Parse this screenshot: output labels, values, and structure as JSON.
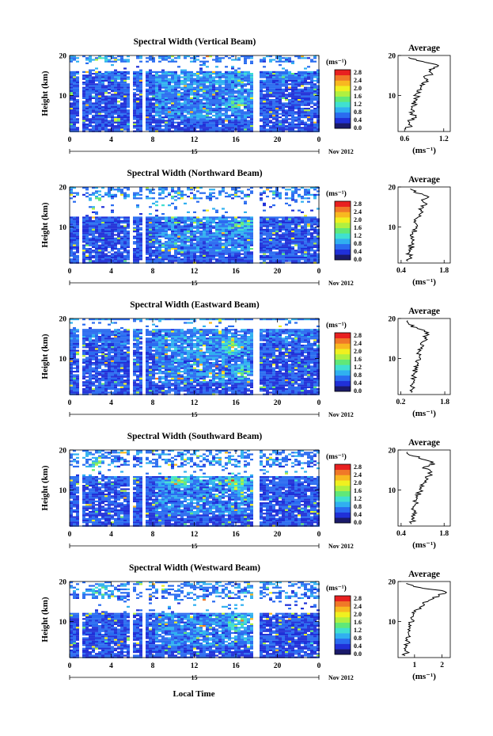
{
  "figure": {
    "date_label": "Nov 2012",
    "day_label": "15",
    "xlabel": "Local Time",
    "avg_title": "Average",
    "unit_label": "(ms⁻¹)"
  },
  "colorbar": {
    "ticks": [
      "2.8",
      "2.4",
      "2.0",
      "1.6",
      "1.2",
      "0.8",
      "0.4",
      "0.0"
    ],
    "colors": [
      "#1a1a6a",
      "#2030d8",
      "#2a6cf0",
      "#30b0f0",
      "#40e0d0",
      "#60e878",
      "#b0f040",
      "#f0f020",
      "#f8b820",
      "#f07828",
      "#e82020"
    ]
  },
  "chart_data": [
    {
      "type": "heatmap",
      "title": "Spectral Width (Vertical Beam)",
      "xlabel": "Local Time",
      "ylabel": "Height (km)",
      "x_ticks": [
        "0",
        "4",
        "8",
        "12",
        "16",
        "20",
        "0"
      ],
      "y_ticks": [
        "20",
        "10"
      ],
      "xlim": [
        0,
        24
      ],
      "ylim": [
        1,
        20
      ],
      "gap_band_km": [
        16.5,
        18.5
      ],
      "gaps_hours": [
        5.8,
        7.0,
        17.8
      ],
      "hot_patches": [
        {
          "x": 2.5,
          "y": 18.5
        },
        {
          "x": 16,
          "y": 8
        }
      ],
      "average": {
        "title": "Average",
        "xlabel": "(ms⁻¹)",
        "x_ticks": [
          "0.6",
          "1.2"
        ],
        "xlim": [
          0.5,
          1.3
        ],
        "y_ticks": [
          "20",
          "10"
        ],
        "ylim": [
          1,
          20
        ],
        "profile": [
          {
            "h": 1.5,
            "v": 0.62
          },
          {
            "h": 2.5,
            "v": 0.7
          },
          {
            "h": 3.5,
            "v": 0.66
          },
          {
            "h": 4.5,
            "v": 0.78
          },
          {
            "h": 5.5,
            "v": 0.72
          },
          {
            "h": 6.5,
            "v": 0.7
          },
          {
            "h": 7.5,
            "v": 0.76
          },
          {
            "h": 8.5,
            "v": 0.74
          },
          {
            "h": 9.5,
            "v": 0.8
          },
          {
            "h": 10.5,
            "v": 0.78
          },
          {
            "h": 11.5,
            "v": 0.86
          },
          {
            "h": 12.5,
            "v": 0.84
          },
          {
            "h": 13.5,
            "v": 0.96
          },
          {
            "h": 14.5,
            "v": 0.9
          },
          {
            "h": 15.5,
            "v": 1.02
          },
          {
            "h": 16.5,
            "v": 0.98
          },
          {
            "h": 17.5,
            "v": 1.12
          },
          {
            "h": 18.5,
            "v": 0.88
          },
          {
            "h": 19.5,
            "v": 0.66
          }
        ]
      }
    },
    {
      "type": "heatmap",
      "title": "Spectral Width (Northward Beam)",
      "xlabel": "Local Time",
      "ylabel": "Height (km)",
      "x_ticks": [
        "0",
        "4",
        "8",
        "12",
        "16",
        "20",
        "0"
      ],
      "y_ticks": [
        "20",
        "10"
      ],
      "xlim": [
        0,
        24
      ],
      "ylim": [
        1,
        20
      ],
      "gap_band_km": [
        13,
        17
      ],
      "gaps_hours": [
        5.8,
        7.0,
        17.8
      ],
      "hot_patches": [
        {
          "x": 16.5,
          "y": 10.5
        },
        {
          "x": 2.5,
          "y": 17
        }
      ],
      "average": {
        "title": "Average",
        "xlabel": "(ms⁻¹)",
        "x_ticks": [
          "0.4",
          "1.8"
        ],
        "xlim": [
          0.3,
          2.0
        ],
        "y_ticks": [
          "20",
          "10"
        ],
        "ylim": [
          1,
          20
        ],
        "profile": [
          {
            "h": 1.5,
            "v": 0.62
          },
          {
            "h": 2.5,
            "v": 0.7
          },
          {
            "h": 3.5,
            "v": 0.66
          },
          {
            "h": 4.5,
            "v": 0.74
          },
          {
            "h": 5.5,
            "v": 0.72
          },
          {
            "h": 6.5,
            "v": 0.76
          },
          {
            "h": 7.5,
            "v": 0.8
          },
          {
            "h": 8.5,
            "v": 0.78
          },
          {
            "h": 9.5,
            "v": 0.86
          },
          {
            "h": 10.5,
            "v": 0.92
          },
          {
            "h": 11.5,
            "v": 0.88
          },
          {
            "h": 12.5,
            "v": 0.96
          },
          {
            "h": 13.5,
            "v": 1.06
          },
          {
            "h": 14.5,
            "v": 0.98
          },
          {
            "h": 15.5,
            "v": 1.2
          },
          {
            "h": 16.5,
            "v": 1.1
          },
          {
            "h": 17.5,
            "v": 1.3
          },
          {
            "h": 18.5,
            "v": 0.9
          },
          {
            "h": 19.5,
            "v": 0.7
          }
        ]
      }
    },
    {
      "type": "heatmap",
      "title": "Spectral Width (Eastward Beam)",
      "xlabel": "Local Time",
      "ylabel": "Height (km)",
      "x_ticks": [
        "0",
        "4",
        "8",
        "12",
        "16",
        "20",
        "0"
      ],
      "y_ticks": [
        "20",
        "10"
      ],
      "xlim": [
        0,
        24
      ],
      "ylim": [
        1,
        20
      ],
      "gap_band_km": [
        17.5,
        20
      ],
      "gaps_hours": [
        5.8,
        7.0,
        17.8
      ],
      "hot_patches": [
        {
          "x": 15.5,
          "y": 13
        },
        {
          "x": 16.5,
          "y": 7
        }
      ],
      "average": {
        "title": "Average",
        "xlabel": "(ms⁻¹)",
        "x_ticks": [
          "0.2",
          "1.8"
        ],
        "xlim": [
          0.1,
          2.0
        ],
        "y_ticks": [
          "20",
          "10"
        ],
        "ylim": [
          1,
          20
        ],
        "profile": [
          {
            "h": 1.5,
            "v": 0.58
          },
          {
            "h": 2.5,
            "v": 0.64
          },
          {
            "h": 3.5,
            "v": 0.62
          },
          {
            "h": 4.5,
            "v": 0.7
          },
          {
            "h": 5.5,
            "v": 0.68
          },
          {
            "h": 6.5,
            "v": 0.74
          },
          {
            "h": 7.5,
            "v": 0.72
          },
          {
            "h": 8.5,
            "v": 0.8
          },
          {
            "h": 9.5,
            "v": 0.78
          },
          {
            "h": 10.5,
            "v": 0.88
          },
          {
            "h": 11.5,
            "v": 0.84
          },
          {
            "h": 12.5,
            "v": 0.98
          },
          {
            "h": 13.5,
            "v": 0.92
          },
          {
            "h": 14.5,
            "v": 1.1
          },
          {
            "h": 15.5,
            "v": 1.02
          },
          {
            "h": 16.5,
            "v": 1.2
          },
          {
            "h": 17.5,
            "v": 0.8
          },
          {
            "h": 18.5,
            "v": 0.5
          },
          {
            "h": 19.5,
            "v": 0.45
          }
        ]
      }
    },
    {
      "type": "heatmap",
      "title": "Spectral Width (Southward Beam)",
      "xlabel": "Local Time",
      "ylabel": "Height (km)",
      "x_ticks": [
        "0",
        "4",
        "8",
        "12",
        "16",
        "20",
        "0"
      ],
      "y_ticks": [
        "20",
        "10"
      ],
      "xlim": [
        0,
        24
      ],
      "ylim": [
        1,
        20
      ],
      "gap_band_km": [
        13.5,
        16
      ],
      "gaps_hours": [
        5.8,
        7.0,
        17.8
      ],
      "hot_patches": [
        {
          "x": 16,
          "y": 12
        },
        {
          "x": 10.5,
          "y": 12.5
        },
        {
          "x": 2.5,
          "y": 16.5
        }
      ],
      "average": {
        "title": "Average",
        "xlabel": "(ms⁻¹)",
        "x_ticks": [
          "0.4",
          "1.8"
        ],
        "xlim": [
          0.3,
          2.0
        ],
        "y_ticks": [
          "20",
          "10"
        ],
        "ylim": [
          1,
          20
        ],
        "profile": [
          {
            "h": 1.5,
            "v": 0.72
          },
          {
            "h": 2.5,
            "v": 0.78
          },
          {
            "h": 3.5,
            "v": 0.74
          },
          {
            "h": 4.5,
            "v": 0.82
          },
          {
            "h": 5.5,
            "v": 0.8
          },
          {
            "h": 6.5,
            "v": 0.86
          },
          {
            "h": 7.5,
            "v": 0.9
          },
          {
            "h": 8.5,
            "v": 0.94
          },
          {
            "h": 9.5,
            "v": 0.98
          },
          {
            "h": 10.5,
            "v": 1.06
          },
          {
            "h": 11.5,
            "v": 1.12
          },
          {
            "h": 12.5,
            "v": 1.22
          },
          {
            "h": 13.5,
            "v": 1.3
          },
          {
            "h": 14.5,
            "v": 1.4
          },
          {
            "h": 15.5,
            "v": 1.1
          },
          {
            "h": 16.5,
            "v": 1.5
          },
          {
            "h": 17.5,
            "v": 1.2
          },
          {
            "h": 18.5,
            "v": 0.8
          },
          {
            "h": 19.5,
            "v": 0.6
          }
        ]
      }
    },
    {
      "type": "heatmap",
      "title": "Spectral Width (Westward Beam)",
      "xlabel": "Local Time",
      "ylabel": "Height (km)",
      "x_ticks": [
        "0",
        "4",
        "8",
        "12",
        "16",
        "20",
        "0"
      ],
      "y_ticks": [
        "20",
        "10"
      ],
      "xlim": [
        0,
        24
      ],
      "ylim": [
        1,
        20
      ],
      "gap_band_km": [
        12.5,
        16
      ],
      "gaps_hours": [
        5.8,
        7.0,
        17.8
      ],
      "hot_patches": [
        {
          "x": 16,
          "y": 10
        },
        {
          "x": 3,
          "y": 17.5
        }
      ],
      "average": {
        "title": "Average",
        "xlabel": "(ms⁻¹)",
        "x_ticks": [
          "1",
          "2"
        ],
        "xlim": [
          0.4,
          2.3
        ],
        "y_ticks": [
          "20",
          "10"
        ],
        "ylim": [
          1,
          20
        ],
        "profile": [
          {
            "h": 1.5,
            "v": 0.66
          },
          {
            "h": 2.5,
            "v": 0.72
          },
          {
            "h": 3.5,
            "v": 0.7
          },
          {
            "h": 4.5,
            "v": 0.76
          },
          {
            "h": 5.5,
            "v": 0.74
          },
          {
            "h": 6.5,
            "v": 0.8
          },
          {
            "h": 7.5,
            "v": 0.78
          },
          {
            "h": 8.5,
            "v": 0.84
          },
          {
            "h": 9.5,
            "v": 0.82
          },
          {
            "h": 10.5,
            "v": 0.9
          },
          {
            "h": 11.5,
            "v": 0.96
          },
          {
            "h": 12.5,
            "v": 1.04
          },
          {
            "h": 13.5,
            "v": 1.18
          },
          {
            "h": 14.5,
            "v": 1.3
          },
          {
            "h": 15.5,
            "v": 1.6
          },
          {
            "h": 16.5,
            "v": 1.9
          },
          {
            "h": 17.5,
            "v": 2.1
          },
          {
            "h": 18.5,
            "v": 1.2
          },
          {
            "h": 19.5,
            "v": 0.7
          }
        ]
      }
    }
  ]
}
